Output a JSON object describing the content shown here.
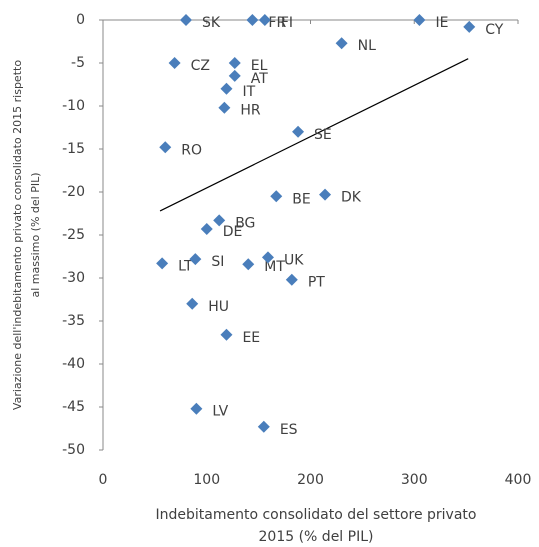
{
  "chart_data": {
    "type": "scatter",
    "labels": [
      "SK",
      "FR",
      "FI",
      "IE",
      "CY",
      "NL",
      "CZ",
      "EL",
      "AT",
      "IT",
      "HR",
      "SE",
      "RO",
      "BE",
      "DK",
      "BG",
      "DE",
      "LT",
      "SI",
      "MT",
      "UK",
      "PT",
      "HU",
      "EE",
      "LV",
      "ES"
    ],
    "x": [
      80,
      144,
      156,
      305,
      353,
      230,
      69,
      127,
      127,
      119,
      117,
      188,
      60,
      167,
      214,
      112,
      100,
      57,
      89,
      140,
      159,
      182,
      86,
      119,
      90,
      155
    ],
    "y": [
      0,
      0,
      0,
      0,
      -0.8,
      -2.7,
      -5,
      -5,
      -6.5,
      -8,
      -10.2,
      -13,
      -14.8,
      -20.5,
      -20.3,
      -23.3,
      -24.3,
      -28.3,
      -27.8,
      -28.4,
      -27.6,
      -30.2,
      -33,
      -36.6,
      -45.2,
      -47.3
    ],
    "color": "#4a7ebb",
    "trendline": {
      "x": [
        55,
        352
      ],
      "y": [
        -22.2,
        -4.5
      ]
    },
    "xlim": [
      0,
      400
    ],
    "xticks": [
      0,
      100,
      200,
      300,
      400
    ],
    "ylim": [
      -50,
      0
    ],
    "yticks": [
      0,
      -5,
      -10,
      -15,
      -20,
      -25,
      -30,
      -35,
      -40,
      -45,
      -50
    ],
    "xlabel": [
      "Indebitamento consolidato del settore privato",
      "2015 (% del PIL)"
    ],
    "ylabel": [
      "Variazione dell'indebitamento  privato consolidato 2015 rispetto",
      "al massimo (% del PIL)"
    ]
  }
}
